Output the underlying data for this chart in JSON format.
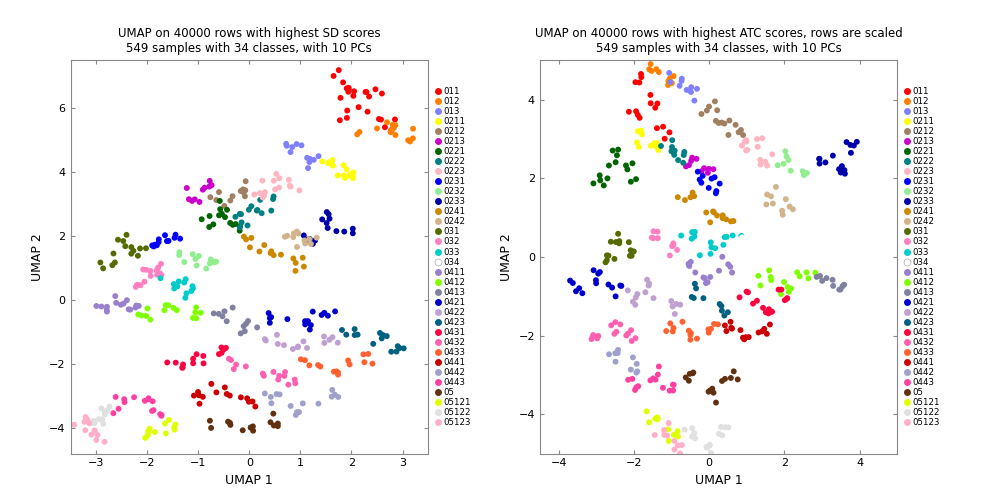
{
  "title_left": "UMAP on 40000 rows with highest SD scores\n549 samples with 34 classes, with 10 PCs",
  "title_right": "UMAP on 40000 rows with highest ATC scores, rows are scaled\n549 samples with 34 classes, with 10 PCs",
  "xlabel": "UMAP 1",
  "ylabel": "UMAP 2",
  "classes": [
    "011",
    "012",
    "013",
    "0211",
    "0212",
    "0213",
    "0221",
    "0222",
    "0223",
    "0231",
    "0232",
    "0233",
    "0241",
    "0242",
    "031",
    "032",
    "033",
    "034",
    "0411",
    "0412",
    "0413",
    "0421",
    "0422",
    "0423",
    "0431",
    "0432",
    "0433",
    "0441",
    "0442",
    "0443",
    "05",
    "05121",
    "05122",
    "05123"
  ],
  "class_colors": {
    "011": "#FF0000",
    "012": "#FF8000",
    "013": "#8080FF",
    "0211": "#FFFF00",
    "0212": "#A08060",
    "0213": "#CC00CC",
    "0221": "#006400",
    "0222": "#008080",
    "0223": "#FFB6C1",
    "0231": "#0000FF",
    "0232": "#90EE90",
    "0233": "#0000AA",
    "0241": "#CC8800",
    "0242": "#D2B48C",
    "031": "#556B00",
    "032": "#FF80C0",
    "033": "#00CCCC",
    "034": "#FFFFFF",
    "0411": "#9980CC",
    "0412": "#80FF00",
    "0413": "#8080A0",
    "0421": "#0000CC",
    "0422": "#C0A0D0",
    "0423": "#006080",
    "0431": "#FF0040",
    "0432": "#FF60B0",
    "0433": "#FF6030",
    "0441": "#CC0000",
    "0442": "#A0A0CC",
    "0443": "#FF40A0",
    "05": "#603010",
    "05121": "#E0FF00",
    "05122": "#E0E0E0",
    "05123": "#FFB0C8"
  },
  "xlim_left": [
    -3.5,
    3.5
  ],
  "ylim_left": [
    -4.8,
    7.5
  ],
  "xlim_right": [
    -4.5,
    5.0
  ],
  "ylim_right": [
    -5.0,
    5.0
  ],
  "point_size": 18,
  "background": "#FFFFFF",
  "figsize": [
    10.08,
    5.04
  ],
  "dpi": 100
}
